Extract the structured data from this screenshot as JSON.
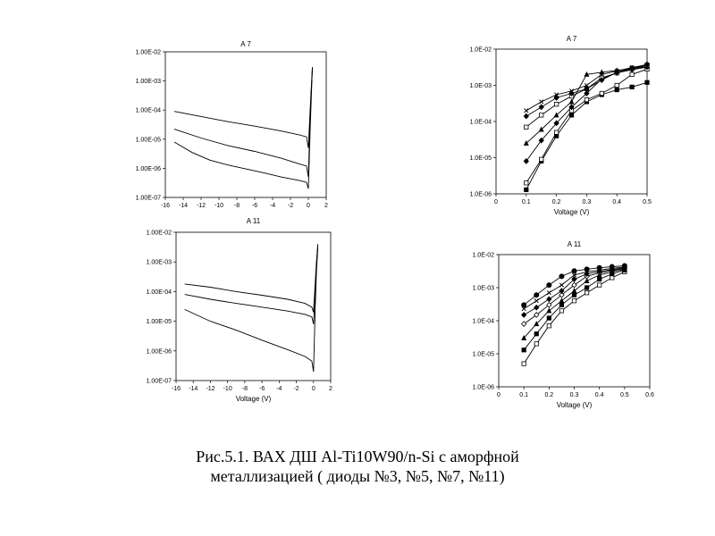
{
  "caption": {
    "line1": "Рис.5.1.  ВАХ   ДШ  Al-Ti10W90/n-Si  с аморфной",
    "line2": "металлизацией ( диоды №3, №5, №7, №11)"
  },
  "chart_data": [
    {
      "id": "A7-reverse",
      "type": "line",
      "title": "A 7",
      "xlabel": "",
      "ylabel": "",
      "xlim": [
        -16,
        2
      ],
      "ylim": [
        1e-07,
        0.01
      ],
      "log_y": true,
      "x_ticks": [
        "-16",
        "-14",
        "-12",
        "-10",
        "-8",
        "-6",
        "-4",
        "-2",
        "0",
        "2"
      ],
      "y_ticks": [
        "1.00E-07",
        "1.00E-06",
        "1.00E-05",
        "1.00E-04",
        "1.00E-03",
        "1.00E-02"
      ],
      "grid": false,
      "series": [
        {
          "x": [
            -15,
            -12,
            -9,
            -6,
            -3,
            -1,
            -0.2,
            0,
            0.2,
            0.35,
            0.45
          ],
          "y": [
            9e-05,
            6e-05,
            4e-05,
            2.8e-05,
            1.9e-05,
            1.4e-05,
            1.2e-05,
            5e-06,
            0.0001,
            0.0008,
            0.003
          ]
        },
        {
          "x": [
            -15,
            -12,
            -9,
            -6,
            -3,
            -1,
            -0.2,
            0,
            0.2,
            0.35,
            0.45
          ],
          "y": [
            2.2e-05,
            1.1e-05,
            6e-06,
            3.8e-06,
            2.2e-06,
            1.4e-06,
            1.2e-06,
            5e-07,
            5e-05,
            0.0006,
            0.0025
          ]
        },
        {
          "x": [
            -15,
            -13,
            -11,
            -9,
            -7,
            -5,
            -3,
            -1,
            -0.2,
            0,
            0.2,
            0.35,
            0.45
          ],
          "y": [
            8e-06,
            3.5e-06,
            1.9e-06,
            1.3e-06,
            9.5e-07,
            7e-07,
            5e-07,
            3.8e-07,
            3.3e-07,
            2e-07,
            2e-05,
            0.0004,
            0.0028
          ]
        }
      ]
    },
    {
      "id": "A11-reverse",
      "type": "line",
      "title": "A 11",
      "xlabel": "Voltage (V)",
      "ylabel": "",
      "xlim": [
        -16,
        2
      ],
      "ylim": [
        1e-07,
        0.01
      ],
      "log_y": true,
      "x_ticks": [
        "-16",
        "-14",
        "-12",
        "-10",
        "-8",
        "-6",
        "-4",
        "-2",
        "0",
        "2"
      ],
      "y_ticks": [
        "1.00E-07",
        "1.00E-06",
        "1.00E-05",
        "1.00E-04",
        "1.00E-03",
        "1.00E-02"
      ],
      "grid": false,
      "series": [
        {
          "x": [
            -15,
            -12,
            -9,
            -6,
            -3,
            -1,
            -0.2,
            0,
            0.2,
            0.35,
            0.5
          ],
          "y": [
            0.00018,
            0.00014,
            0.0001,
            7.5e-05,
            5.5e-05,
            4e-05,
            3e-05,
            2e-05,
            0.0002,
            0.001,
            0.004
          ]
        },
        {
          "x": [
            -15,
            -12,
            -9,
            -6,
            -3,
            -1,
            -0.2,
            0,
            0.2,
            0.35,
            0.5
          ],
          "y": [
            8e-05,
            5.5e-05,
            4e-05,
            3e-05,
            2.2e-05,
            1.7e-05,
            1.4e-05,
            8e-06,
            0.0001,
            0.0008,
            0.0035
          ]
        },
        {
          "x": [
            -15,
            -12,
            -9,
            -6,
            -3,
            -1,
            -0.2,
            0,
            0.2,
            0.35,
            0.5
          ],
          "y": [
            2.5e-05,
            1e-05,
            5e-06,
            2.3e-06,
            1.1e-06,
            6.5e-07,
            4.5e-07,
            2e-07,
            3e-05,
            0.0005,
            0.003
          ]
        }
      ]
    },
    {
      "id": "A7-forward",
      "type": "line",
      "title": "A 7",
      "xlabel": "Voltage (V)",
      "ylabel": "",
      "xlim": [
        0,
        0.5
      ],
      "ylim": [
        1e-06,
        0.01
      ],
      "log_y": true,
      "x_ticks": [
        "0",
        "0.1",
        "0.2",
        "0.3",
        "0.4",
        "0.5"
      ],
      "y_ticks": [
        "1.0E-06",
        "1.0E-05",
        "1.0E-04",
        "1.0E-03",
        "1.0E-02"
      ],
      "grid": false,
      "series": [
        {
          "marker": "square-filled",
          "x": [
            0.1,
            0.15,
            0.2,
            0.25,
            0.3,
            0.35,
            0.4,
            0.45,
            0.5
          ],
          "y": [
            1.3e-06,
            8e-06,
            4e-05,
            0.00015,
            0.00035,
            0.00055,
            0.00075,
            0.0009,
            0.0012
          ]
        },
        {
          "marker": "square-open",
          "x": [
            0.1,
            0.15,
            0.2,
            0.25,
            0.3,
            0.35,
            0.4,
            0.45,
            0.5
          ],
          "y": [
            2e-06,
            9e-06,
            5e-05,
            0.0002,
            0.0004,
            0.0006,
            0.001,
            0.002,
            0.0028
          ]
        },
        {
          "marker": "diamond-filled",
          "x": [
            0.1,
            0.15,
            0.2,
            0.25,
            0.3,
            0.35,
            0.4,
            0.45,
            0.5
          ],
          "y": [
            8e-06,
            3e-05,
            9e-05,
            0.00025,
            0.0006,
            0.0015,
            0.0022,
            0.0027,
            0.0032
          ]
        },
        {
          "marker": "triangle-filled",
          "x": [
            0.1,
            0.15,
            0.2,
            0.25,
            0.3,
            0.35,
            0.4,
            0.45,
            0.5
          ],
          "y": [
            2.5e-05,
            6e-05,
            0.00015,
            0.00035,
            0.002,
            0.0023,
            0.0026,
            0.0029,
            0.0033
          ]
        },
        {
          "marker": "square-open",
          "x": [
            0.1,
            0.15,
            0.2,
            0.25,
            0.3,
            0.35,
            0.4,
            0.45,
            0.5
          ],
          "y": [
            7e-05,
            0.00015,
            0.0003,
            0.0005,
            0.0008,
            0.0016,
            0.0022,
            0.0029,
            0.0036
          ]
        },
        {
          "marker": "diamond-filled",
          "x": [
            0.1,
            0.15,
            0.2,
            0.25,
            0.3,
            0.35,
            0.4,
            0.45,
            0.5
          ],
          "y": [
            0.00014,
            0.00025,
            0.00045,
            0.0006,
            0.0008,
            0.0014,
            0.0023,
            0.003,
            0.0038
          ]
        },
        {
          "marker": "x",
          "x": [
            0.1,
            0.15,
            0.2,
            0.25,
            0.3,
            0.35,
            0.4,
            0.45,
            0.5
          ],
          "y": [
            0.0002,
            0.00035,
            0.00055,
            0.0007,
            0.001,
            0.002,
            0.0025,
            0.0031,
            0.0037
          ]
        }
      ]
    },
    {
      "id": "A11-forward",
      "type": "line",
      "title": "A 11",
      "xlabel": "Voltage (V)",
      "ylabel": "",
      "xlim": [
        0,
        0.6
      ],
      "ylim": [
        1e-06,
        0.01
      ],
      "log_y": true,
      "x_ticks": [
        "0",
        "0.1",
        "0.2",
        "0.3",
        "0.4",
        "0.5",
        "0.6"
      ],
      "y_ticks": [
        "1.0E-06",
        "1.0E-05",
        "1.0E-04",
        "1.0E-03",
        "1.0E-02"
      ],
      "grid": false,
      "series": [
        {
          "marker": "square-open",
          "x": [
            0.1,
            0.15,
            0.2,
            0.25,
            0.3,
            0.35,
            0.4,
            0.45,
            0.5
          ],
          "y": [
            5e-06,
            2e-05,
            7e-05,
            0.0002,
            0.0004,
            0.0007,
            0.0012,
            0.002,
            0.003
          ]
        },
        {
          "marker": "square-filled",
          "x": [
            0.1,
            0.15,
            0.2,
            0.25,
            0.3,
            0.35,
            0.4,
            0.45,
            0.5
          ],
          "y": [
            1.3e-05,
            4e-05,
            0.00012,
            0.0003,
            0.0006,
            0.001,
            0.0018,
            0.0026,
            0.0034
          ]
        },
        {
          "marker": "triangle-filled",
          "x": [
            0.1,
            0.15,
            0.2,
            0.25,
            0.3,
            0.35,
            0.4,
            0.45,
            0.5
          ],
          "y": [
            3e-05,
            8e-05,
            0.0002,
            0.0004,
            0.0008,
            0.0016,
            0.0024,
            0.003,
            0.0036
          ]
        },
        {
          "marker": "diamond-open",
          "x": [
            0.1,
            0.15,
            0.2,
            0.25,
            0.3,
            0.35,
            0.4,
            0.45,
            0.5
          ],
          "y": [
            8e-05,
            0.00015,
            0.0003,
            0.0006,
            0.0012,
            0.0022,
            0.0028,
            0.0033,
            0.0038
          ]
        },
        {
          "marker": "diamond-filled",
          "x": [
            0.1,
            0.15,
            0.2,
            0.25,
            0.3,
            0.35,
            0.4,
            0.45,
            0.5
          ],
          "y": [
            0.00015,
            0.00025,
            0.00045,
            0.0008,
            0.0018,
            0.0026,
            0.0031,
            0.0035,
            0.004
          ]
        },
        {
          "marker": "x",
          "x": [
            0.1,
            0.15,
            0.2,
            0.25,
            0.3,
            0.35,
            0.4,
            0.45,
            0.5
          ],
          "y": [
            0.00023,
            0.0004,
            0.0007,
            0.0012,
            0.0024,
            0.003,
            0.0034,
            0.0038,
            0.0042
          ]
        },
        {
          "marker": "circle-filled",
          "x": [
            0.1,
            0.15,
            0.2,
            0.25,
            0.3,
            0.35,
            0.4,
            0.45,
            0.5
          ],
          "y": [
            0.0003,
            0.0006,
            0.0012,
            0.0022,
            0.0032,
            0.0036,
            0.004,
            0.0043,
            0.0046
          ]
        }
      ]
    }
  ]
}
